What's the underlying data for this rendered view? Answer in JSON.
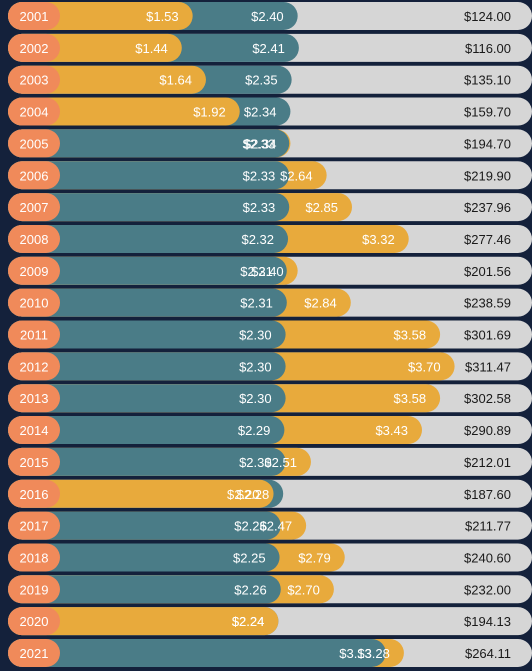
{
  "chart_data": {
    "type": "bar",
    "categories": [
      "2001",
      "2002",
      "2003",
      "2004",
      "2005",
      "2006",
      "2007",
      "2008",
      "2009",
      "2010",
      "2011",
      "2012",
      "2013",
      "2014",
      "2015",
      "2016",
      "2017",
      "2018",
      "2019",
      "2020",
      "2021"
    ],
    "series": [
      {
        "values": [
          2.4,
          2.41,
          2.35,
          2.34,
          2.33,
          2.33,
          2.33,
          2.32,
          2.31,
          2.31,
          2.3,
          2.3,
          2.3,
          2.29,
          2.3,
          2.28,
          2.26,
          2.25,
          2.26,
          2.24,
          3.13
        ],
        "labels": [
          "$2.40",
          "$2.41",
          "$2.35",
          "$2.34",
          "$2.33",
          "$2.33",
          "$2.33",
          "$2.32",
          "$2.31",
          "$2.31",
          "$2.30",
          "$2.30",
          "$2.30",
          "$2.29",
          "$2.30",
          "$2.28",
          "$2.26",
          "$2.25",
          "$2.26",
          "$2.24",
          "$3.13"
        ]
      },
      {
        "values": [
          1.53,
          1.44,
          1.64,
          1.92,
          2.34,
          2.64,
          2.85,
          3.32,
          2.4,
          2.84,
          3.58,
          3.7,
          3.58,
          3.43,
          2.51,
          2.2,
          2.47,
          2.79,
          2.7,
          2.24,
          3.28
        ],
        "labels": [
          "$1.53",
          "$1.44",
          "$1.64",
          "$1.92",
          "$2.34",
          "$2.64",
          "$2.85",
          "$3.32",
          "$2.40",
          "$2.84",
          "$3.58",
          "$3.70",
          "$3.58",
          "$3.43",
          "$2.51",
          "$2.20",
          "$2.47",
          "$2.79",
          "$2.70",
          "$2.24",
          "$3.28"
        ]
      }
    ],
    "totals": [
      "$124.00",
      "$116.00",
      "$135.10",
      "$159.70",
      "$194.70",
      "$219.90",
      "$237.96",
      "$277.46",
      "$201.56",
      "$238.59",
      "$301.69",
      "$311.47",
      "$302.58",
      "$290.89",
      "$212.01",
      "$187.60",
      "$211.77",
      "$240.60",
      "$232.00",
      "$194.13",
      "$264.11"
    ],
    "colors": {
      "background": "#14213b",
      "track": "#d6d6d6",
      "series_a": "#4a7c87",
      "series_b": "#e8aa3c",
      "year_pill": "#f08a5a",
      "label_text": "#ffffff",
      "total_text": "#1a1a1a"
    },
    "grid": false,
    "legend": "none"
  }
}
